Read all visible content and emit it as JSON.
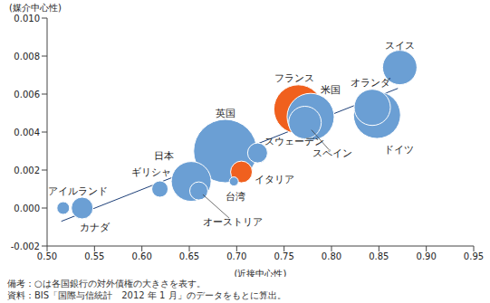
{
  "chart_data": {
    "type": "scatter",
    "x_label": "(近接中心性)",
    "y_label": "(媒介中心性)",
    "notes": [
      "備考：○は各国銀行の対外債権の大きさを表す。",
      "資料：BIS「国際与信統計　2012 年 1 月」のデータをもとに算出。"
    ],
    "point_labels": [
      "英国",
      "フランス",
      "米国",
      "スペイン",
      "ドイツ",
      "オランダ",
      "日本",
      "オーストリア",
      "スイス",
      "カナダ",
      "イタリア",
      "スウェーデン",
      "ギリシャ",
      "アイルランド",
      "台湾"
    ],
    "x": [
      0.688,
      0.765,
      0.778,
      0.772,
      0.848,
      0.843,
      0.652,
      0.66,
      0.872,
      0.537,
      0.705,
      0.722,
      0.619,
      0.517,
      0.697
    ],
    "values": [
      0.003,
      0.0052,
      0.0048,
      0.0045,
      0.0049,
      0.0053,
      0.0014,
      0.0009,
      0.0074,
      0.0,
      0.0019,
      0.0029,
      0.001,
      0.0,
      0.0014
    ],
    "sizes": [
      1225,
      729,
      676,
      324,
      676,
      400,
      484,
      100,
      361,
      144,
      144,
      121,
      81,
      49,
      25
    ],
    "colors": [
      "#6b9fd4",
      "#f0601e",
      "#6b9fd4",
      "#6b9fd4",
      "#6b9fd4",
      "#6b9fd4",
      "#6b9fd4",
      "#6b9fd4",
      "#6b9fd4",
      "#6b9fd4",
      "#f0601e",
      "#6b9fd4",
      "#6b9fd4",
      "#6b9fd4",
      "#6b9fd4"
    ],
    "trend_line": {
      "x": [
        0.515,
        0.87
      ],
      "y": [
        -0.0007,
        0.0063
      ]
    },
    "xlim": [
      0.5,
      0.95
    ],
    "xticks": [
      {
        "value": 0.5,
        "label": "0.50"
      },
      0.55,
      {
        "value": 0.6,
        "label": "0.60"
      },
      0.65,
      {
        "value": 0.7,
        "label": "0.70"
      },
      0.75,
      {
        "value": 0.8,
        "label": "0.80"
      },
      0.85,
      {
        "value": 0.9,
        "label": "0.90"
      },
      0.95
    ],
    "ylim": [
      -0.002,
      0.01
    ],
    "yticks": [
      -0.002,
      {
        "value": 0,
        "label": "0.000"
      },
      0.002,
      0.004,
      0.006,
      0.008,
      {
        "value": 0.01,
        "label": "0.010"
      }
    ],
    "grid": false
  }
}
